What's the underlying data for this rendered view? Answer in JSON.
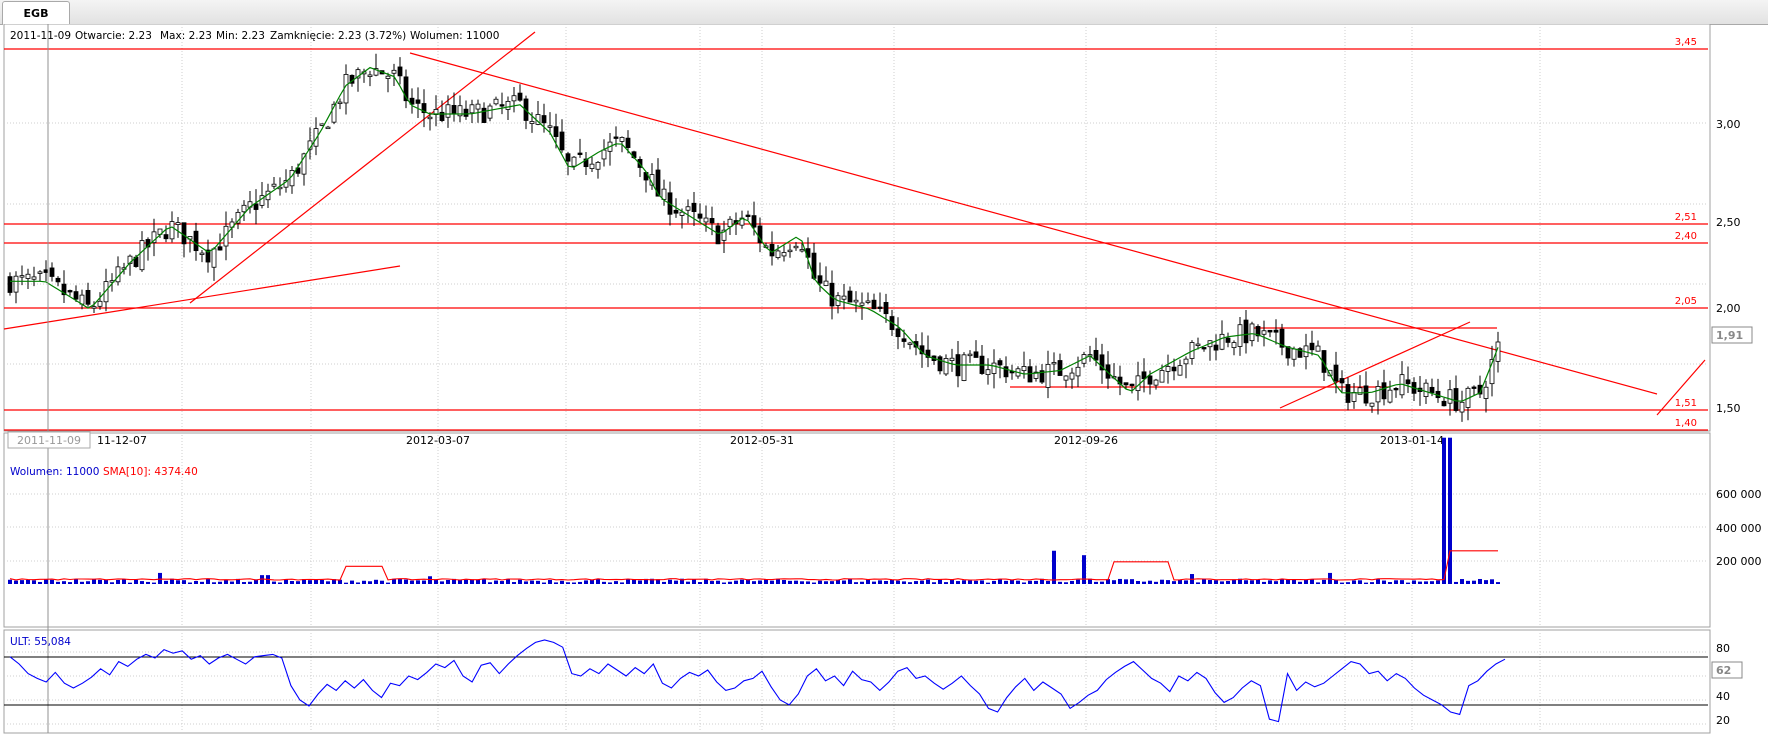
{
  "tab": {
    "label": "EGB"
  },
  "info_bar": {
    "date": "2011-11-09",
    "open": "Otwarcie: 2.23",
    "max": "Max: 2.23",
    "min": "Min: 2.23",
    "close": "Zamknięcie: 2.23 (3.72%)",
    "volume": "Wolumen: 11000"
  },
  "price_panel": {
    "y_ticks": [
      "3,00",
      "2,50",
      "2,00",
      "1,50"
    ],
    "level_labels": [
      "3,45",
      "2,51",
      "2,40",
      "2,05",
      "1,51",
      "1,40"
    ],
    "last_price_label": "1,91"
  },
  "x_axis": {
    "cursor_label": "2011-11-09",
    "tick_labels": [
      "11-12-07",
      "2012-03-07",
      "2012-05-31",
      "2012-09-26",
      "2013-01-14"
    ]
  },
  "volume_panel": {
    "legend_volume": "Wolumen: 11000",
    "legend_sma": "SMA[10]: 4374.40",
    "y_ticks": [
      "600 000",
      "400 000",
      "200 000"
    ]
  },
  "ult_panel": {
    "legend": "ULT: 55,084",
    "y_ticks": [
      "80",
      "60",
      "40",
      "20"
    ],
    "last_value_label": "62"
  },
  "colors": {
    "candle": "#000000",
    "sma_price": "#008000",
    "trendline": "#ff0000",
    "volume_bar": "#0000cc",
    "volume_sma": "#ff0000",
    "ult_line": "#0000ff",
    "grid": "#c8c8c8"
  },
  "chart_data": [
    {
      "type": "candlestick",
      "x": [
        "2011-11-09",
        "2011-12-07",
        "2012-03-07",
        "2012-05-31",
        "2012-09-26",
        "2013-01-14"
      ],
      "ylim": [
        1.4,
        3.45
      ],
      "horizontal_levels": [
        3.45,
        2.51,
        2.4,
        2.05,
        1.51,
        1.4
      ],
      "approx_close_path": [
        [
          0,
          2.2
        ],
        [
          45,
          2.2
        ],
        [
          90,
          2.05
        ],
        [
          130,
          2.3
        ],
        [
          170,
          2.5
        ],
        [
          210,
          2.35
        ],
        [
          250,
          2.6
        ],
        [
          290,
          2.75
        ],
        [
          320,
          3.0
        ],
        [
          345,
          3.25
        ],
        [
          370,
          3.35
        ],
        [
          395,
          3.3
        ],
        [
          410,
          3.15
        ],
        [
          430,
          3.1
        ],
        [
          470,
          3.1
        ],
        [
          520,
          3.15
        ],
        [
          550,
          3.0
        ],
        [
          570,
          2.8
        ],
        [
          600,
          2.9
        ],
        [
          620,
          2.95
        ],
        [
          645,
          2.8
        ],
        [
          660,
          2.65
        ],
        [
          690,
          2.55
        ],
        [
          720,
          2.45
        ],
        [
          745,
          2.55
        ],
        [
          770,
          2.35
        ],
        [
          800,
          2.45
        ],
        [
          815,
          2.2
        ],
        [
          835,
          2.1
        ],
        [
          870,
          2.05
        ],
        [
          900,
          1.95
        ],
        [
          925,
          1.8
        ],
        [
          955,
          1.75
        ],
        [
          990,
          1.75
        ],
        [
          1025,
          1.7
        ],
        [
          1060,
          1.72
        ],
        [
          1090,
          1.8
        ],
        [
          1110,
          1.7
        ],
        [
          1130,
          1.6
        ],
        [
          1150,
          1.7
        ],
        [
          1190,
          1.82
        ],
        [
          1225,
          1.9
        ],
        [
          1255,
          1.92
        ],
        [
          1285,
          1.85
        ],
        [
          1320,
          1.8
        ],
        [
          1340,
          1.6
        ],
        [
          1370,
          1.6
        ],
        [
          1400,
          1.65
        ],
        [
          1430,
          1.6
        ],
        [
          1460,
          1.55
        ],
        [
          1480,
          1.6
        ],
        [
          1495,
          1.8
        ],
        [
          1505,
          1.95
        ]
      ]
    },
    {
      "type": "bar",
      "name": "Wolumen",
      "ylim": [
        0,
        700000
      ],
      "spikes": [
        [
          160,
          50000
        ],
        [
          265,
          40000
        ],
        [
          432,
          35000
        ],
        [
          1055,
          150000
        ],
        [
          1085,
          130000
        ],
        [
          1192,
          45000
        ],
        [
          1332,
          50000
        ],
        [
          1447,
          660000
        ]
      ],
      "sma_level": 75000
    },
    {
      "type": "line",
      "name": "ULT",
      "ylim": [
        15,
        95
      ],
      "values": [
        76,
        70,
        62,
        58,
        55,
        63,
        54,
        50,
        54,
        59,
        66,
        61,
        72,
        68,
        74,
        78,
        75,
        82,
        79,
        81,
        74,
        77,
        70,
        75,
        78,
        74,
        70,
        76,
        77,
        78,
        75,
        52,
        40,
        35,
        45,
        53,
        48,
        56,
        50,
        57,
        48,
        42,
        54,
        52,
        60,
        57,
        63,
        70,
        67,
        73,
        60,
        55,
        69,
        71,
        62,
        70,
        77,
        83,
        88,
        90,
        88,
        84,
        62,
        60,
        66,
        62,
        70,
        65,
        60,
        67,
        62,
        70,
        54,
        50,
        58,
        63,
        60,
        65,
        55,
        48,
        50,
        56,
        58,
        64,
        51,
        40,
        36,
        45,
        60,
        66,
        56,
        60,
        52,
        64,
        57,
        55,
        48,
        55,
        64,
        67,
        58,
        60,
        54,
        49,
        54,
        60,
        52,
        45,
        33,
        30,
        42,
        51,
        58,
        48,
        55,
        50,
        45,
        33,
        38,
        44,
        48,
        57,
        63,
        68,
        72,
        65,
        58,
        54,
        47,
        60,
        56,
        63,
        58,
        46,
        38,
        42,
        50,
        56,
        52,
        24,
        22,
        62,
        48,
        55,
        51,
        54,
        60,
        66,
        72,
        70,
        62,
        64,
        56,
        62,
        58,
        50,
        44,
        40,
        36,
        30,
        28,
        52,
        56,
        64,
        70,
        74
      ]
    }
  ]
}
